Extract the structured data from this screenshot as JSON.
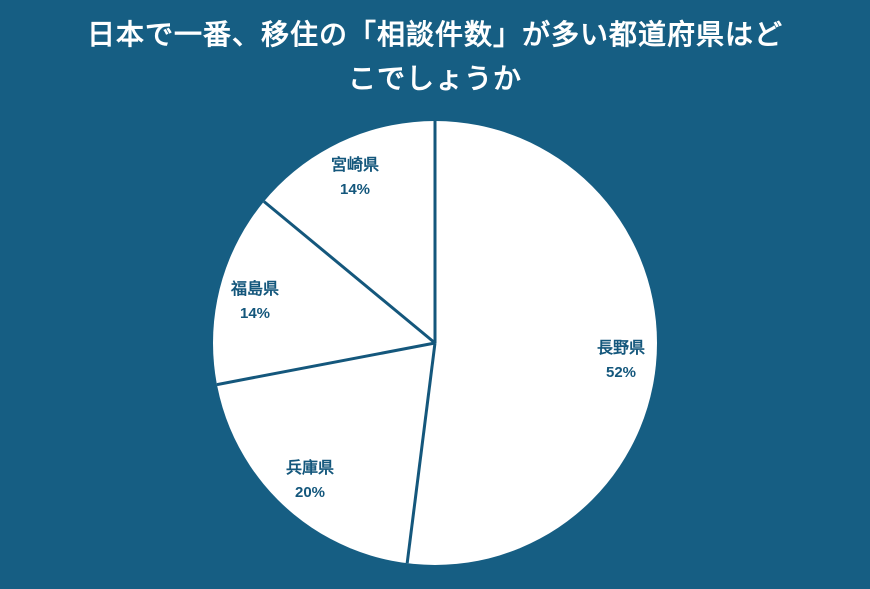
{
  "title": {
    "line1": "日本で一番、移住の「相談件数」が多い都道府県はど",
    "line2": "こでしょうか"
  },
  "chart_data": {
    "type": "pie",
    "categories": [
      "長野県",
      "兵庫県",
      "福島県",
      "宮崎県"
    ],
    "values": [
      52,
      20,
      14,
      14
    ],
    "unit": "%",
    "start_angle_deg": 0,
    "direction": "clockwise",
    "labels": [
      {
        "name": "長野県",
        "pct": "52%"
      },
      {
        "name": "兵庫県",
        "pct": "20%"
      },
      {
        "name": "福島県",
        "pct": "14%"
      },
      {
        "name": "宮崎県",
        "pct": "14%"
      }
    ],
    "slice_fill": "#ffffff",
    "divider_color": "#14577c",
    "label_color": "#14577c",
    "background_color": "#165e83",
    "title_color": "#ffffff",
    "legend": "none"
  }
}
